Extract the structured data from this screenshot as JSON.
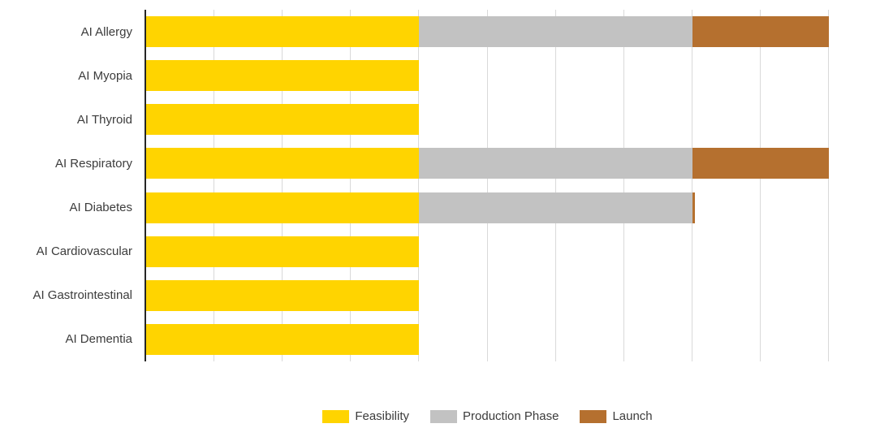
{
  "chart_data": {
    "type": "bar",
    "orientation": "horizontal",
    "stacked": true,
    "title": "",
    "xlabel": "",
    "ylabel": "",
    "categories": [
      "AI Allergy",
      "AI Myopia",
      "AI Thyroid",
      "AI Respiratory",
      "AI Diabetes",
      "AI Cardiovascular",
      "AI Gastrointestinal",
      "AI Dementia"
    ],
    "series": [
      {
        "name": "Feasibility",
        "color": "#FFD400",
        "values": [
          4,
          4,
          4,
          4,
          4,
          4,
          4,
          4
        ]
      },
      {
        "name": "Production Phase",
        "color": "#C2C2C2",
        "values": [
          4,
          0,
          0,
          4,
          4,
          0,
          0,
          0
        ]
      },
      {
        "name": "Launch",
        "color": "#B5702F",
        "values": [
          2,
          0,
          0,
          2,
          0.04,
          0,
          0,
          0
        ]
      }
    ],
    "xlim": [
      0,
      10
    ],
    "gridline_interval": 1,
    "grid": true,
    "tick_labels_visible": false,
    "legend_position": "bottom"
  },
  "colors": {
    "background": "#FFFFFF",
    "gridline": "#D9D9D9",
    "axis_line": "#262626",
    "label_text": "#3C3C3C"
  }
}
